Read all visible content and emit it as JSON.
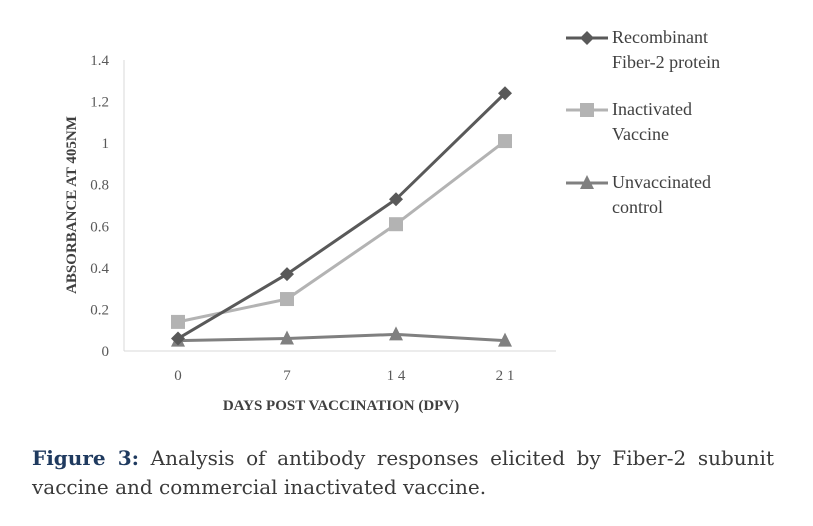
{
  "chart_data": {
    "type": "line",
    "x": [
      0,
      7,
      14,
      21
    ],
    "x_tick_labels": [
      "0",
      "7",
      "1 4",
      "2 1"
    ],
    "xlabel": "DAYS POST VACCINATION (DPV)",
    "ylabel": "ABSORBANCE AT 405NM",
    "ylim": [
      0,
      1.4
    ],
    "y_ticks": [
      0,
      0.2,
      0.4,
      0.6,
      0.8,
      1,
      1.2,
      1.4
    ],
    "y_tick_labels": [
      "0",
      "0.2",
      "0.4",
      "0.6",
      "0.8",
      "1",
      "1.2",
      "1.4"
    ],
    "grid": false,
    "legend_position": "right",
    "series": [
      {
        "name_lines": [
          "Recombinant",
          "Fiber-2 protein"
        ],
        "name": "Recombinant Fiber-2 protein",
        "values": [
          0.06,
          0.37,
          0.73,
          1.24
        ],
        "color": "#595959",
        "marker": "diamond"
      },
      {
        "name_lines": [
          "Inactivated",
          "Vaccine"
        ],
        "name": "Inactivated Vaccine",
        "values": [
          0.14,
          0.25,
          0.61,
          1.01
        ],
        "color": "#b3b3b3",
        "marker": "square"
      },
      {
        "name_lines": [
          "Unvaccinated",
          "control"
        ],
        "name": "Unvaccinated control",
        "values": [
          0.05,
          0.06,
          0.08,
          0.05
        ],
        "color": "#808080",
        "marker": "triangle"
      }
    ]
  },
  "caption": {
    "label": "Figure 3:",
    "text": "Analysis of antibody responses elicited by Fiber-2 subunit vaccine and commercial inactivated vaccine."
  }
}
